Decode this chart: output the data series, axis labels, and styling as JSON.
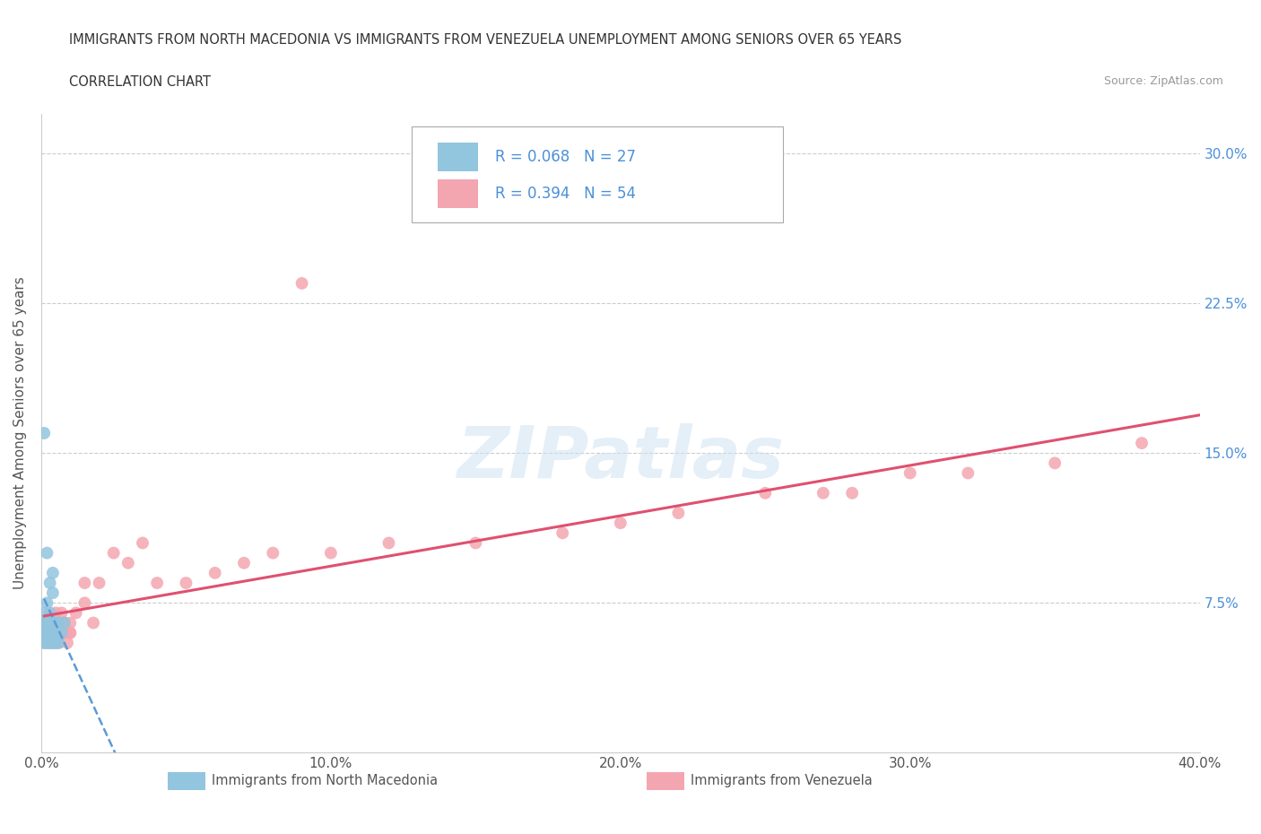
{
  "title_line1": "IMMIGRANTS FROM NORTH MACEDONIA VS IMMIGRANTS FROM VENEZUELA UNEMPLOYMENT AMONG SENIORS OVER 65 YEARS",
  "title_line2": "CORRELATION CHART",
  "source": "Source: ZipAtlas.com",
  "ylabel": "Unemployment Among Seniors over 65 years",
  "xlim": [
    0.0,
    0.4
  ],
  "ylim": [
    0.0,
    0.32
  ],
  "yticks": [
    0.0,
    0.075,
    0.15,
    0.225,
    0.3
  ],
  "ytick_labels": [
    "",
    "7.5%",
    "15.0%",
    "22.5%",
    "30.0%"
  ],
  "xticks": [
    0.0,
    0.1,
    0.2,
    0.3,
    0.4
  ],
  "xtick_labels": [
    "0.0%",
    "10.0%",
    "20.0%",
    "30.0%",
    "40.0%"
  ],
  "series1_color": "#92c5de",
  "series2_color": "#f4a6b0",
  "trendline1_color": "#5b9bd5",
  "trendline2_color": "#e05070",
  "background_color": "#ffffff",
  "grid_color": "#cccccc",
  "nm_x": [
    0.001,
    0.001,
    0.001,
    0.001,
    0.002,
    0.002,
    0.002,
    0.002,
    0.003,
    0.003,
    0.003,
    0.003,
    0.004,
    0.004,
    0.004,
    0.004,
    0.005,
    0.005,
    0.006,
    0.006,
    0.007,
    0.008,
    0.001,
    0.002,
    0.003,
    0.004,
    0.005
  ],
  "nm_y": [
    0.055,
    0.06,
    0.065,
    0.07,
    0.055,
    0.06,
    0.065,
    0.075,
    0.055,
    0.06,
    0.065,
    0.07,
    0.055,
    0.06,
    0.065,
    0.08,
    0.06,
    0.065,
    0.055,
    0.065,
    0.06,
    0.065,
    0.16,
    0.1,
    0.085,
    0.09,
    0.055
  ],
  "ven_x": [
    0.001,
    0.001,
    0.001,
    0.002,
    0.002,
    0.002,
    0.003,
    0.003,
    0.003,
    0.004,
    0.004,
    0.004,
    0.005,
    0.005,
    0.005,
    0.006,
    0.006,
    0.007,
    0.007,
    0.008,
    0.008,
    0.009,
    0.01,
    0.01,
    0.012,
    0.015,
    0.015,
    0.018,
    0.02,
    0.025,
    0.03,
    0.035,
    0.04,
    0.05,
    0.06,
    0.07,
    0.08,
    0.1,
    0.12,
    0.15,
    0.18,
    0.2,
    0.22,
    0.25,
    0.28,
    0.3,
    0.32,
    0.35,
    0.38,
    0.005,
    0.008,
    0.01,
    0.09,
    0.27
  ],
  "ven_y": [
    0.055,
    0.06,
    0.065,
    0.055,
    0.06,
    0.065,
    0.055,
    0.06,
    0.065,
    0.055,
    0.06,
    0.065,
    0.055,
    0.06,
    0.065,
    0.055,
    0.065,
    0.06,
    0.07,
    0.06,
    0.065,
    0.055,
    0.06,
    0.065,
    0.07,
    0.075,
    0.085,
    0.065,
    0.085,
    0.1,
    0.095,
    0.105,
    0.085,
    0.085,
    0.09,
    0.095,
    0.1,
    0.1,
    0.105,
    0.105,
    0.11,
    0.115,
    0.12,
    0.13,
    0.13,
    0.14,
    0.14,
    0.145,
    0.155,
    0.07,
    0.065,
    0.06,
    0.235,
    0.13
  ]
}
